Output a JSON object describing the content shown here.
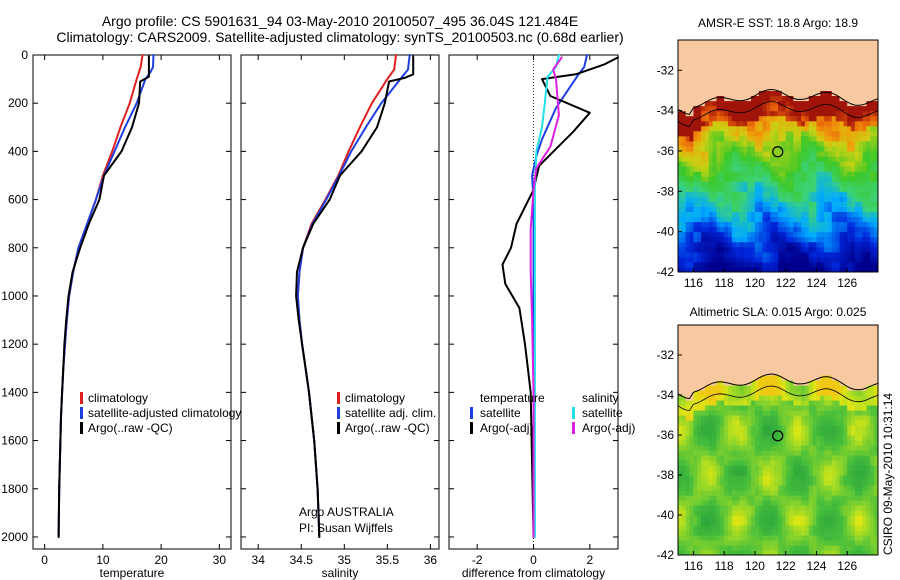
{
  "header": {
    "title_line1": "Argo profile: CS 5901631_94 03-May-2010 20100507_495 36.04S 121.484E",
    "title_line2": "Climatology: CARS2009. Satellite-adjusted climatology: synTS_20100503.nc (0.68d earlier)"
  },
  "side_text": "CSIRO 09-May-2010 10:31:14",
  "colors": {
    "climatology": "#e02020",
    "satellite": "#1f3fe0",
    "argo": "#000000",
    "sat_salinity": "#22e0e8",
    "argo_adj_salinity": "#e020e0",
    "land": "#f8c8a0"
  },
  "chart_data": [
    {
      "type": "line",
      "id": "temperature",
      "xlabel": "temperature",
      "xlim": [
        -2,
        32
      ],
      "ylim": [
        2050,
        0
      ],
      "xticks": [
        0,
        10,
        20,
        30
      ],
      "yticks": [
        0,
        200,
        400,
        600,
        800,
        1000,
        1200,
        1400,
        1600,
        1800,
        2000
      ],
      "legend": [
        "climatology",
        "satellite-adjusted climatology",
        "Argo(..raw -QC)"
      ],
      "series": [
        {
          "name": "climatology",
          "color": "#e02020",
          "width": 2,
          "points": [
            [
              16.8,
              0
            ],
            [
              16.5,
              50
            ],
            [
              15.8,
              100
            ],
            [
              14.6,
              200
            ],
            [
              13.0,
              300
            ],
            [
              11.6,
              400
            ],
            [
              10.0,
              500
            ],
            [
              8.8,
              600
            ],
            [
              7.3,
              700
            ],
            [
              5.8,
              800
            ],
            [
              4.9,
              900
            ],
            [
              4.2,
              1000
            ],
            [
              3.8,
              1100
            ],
            [
              3.5,
              1200
            ],
            [
              3.2,
              1300
            ],
            [
              3.0,
              1400
            ],
            [
              2.8,
              1500
            ],
            [
              2.7,
              1600
            ],
            [
              2.6,
              1700
            ],
            [
              2.5,
              1800
            ],
            [
              2.45,
              1900
            ],
            [
              2.4,
              2000
            ]
          ]
        },
        {
          "name": "satellite-adjusted climatology",
          "color": "#1f3fe0",
          "width": 2,
          "points": [
            [
              18.7,
              0
            ],
            [
              18.6,
              50
            ],
            [
              18.2,
              70
            ],
            [
              17.3,
              100
            ],
            [
              15.8,
              200
            ],
            [
              13.8,
              300
            ],
            [
              12.0,
              400
            ],
            [
              10.2,
              500
            ],
            [
              8.8,
              600
            ],
            [
              7.3,
              700
            ],
            [
              5.8,
              800
            ],
            [
              4.9,
              900
            ],
            [
              4.2,
              1000
            ],
            [
              3.8,
              1100
            ],
            [
              3.5,
              1200
            ],
            [
              3.2,
              1300
            ],
            [
              3.0,
              1400
            ],
            [
              2.8,
              1500
            ],
            [
              2.7,
              1600
            ],
            [
              2.6,
              1700
            ],
            [
              2.5,
              1800
            ],
            [
              2.45,
              1900
            ],
            [
              2.4,
              2000
            ]
          ]
        },
        {
          "name": "Argo(..raw -QC)",
          "color": "#000000",
          "width": 2,
          "points": [
            [
              17.9,
              5
            ],
            [
              17.9,
              60
            ],
            [
              17.9,
              90
            ],
            [
              16.4,
              110
            ],
            [
              16.2,
              200
            ],
            [
              15.0,
              300
            ],
            [
              13.2,
              400
            ],
            [
              10.2,
              500
            ],
            [
              9.4,
              600
            ],
            [
              7.6,
              700
            ],
            [
              6.1,
              800
            ],
            [
              4.8,
              900
            ],
            [
              4.1,
              1000
            ],
            [
              3.7,
              1100
            ],
            [
              3.4,
              1200
            ],
            [
              3.2,
              1300
            ],
            [
              3.0,
              1400
            ],
            [
              2.8,
              1500
            ],
            [
              2.7,
              1600
            ],
            [
              2.6,
              1700
            ],
            [
              2.5,
              1800
            ],
            [
              2.45,
              1900
            ],
            [
              2.4,
              2000
            ]
          ]
        }
      ]
    },
    {
      "type": "line",
      "id": "salinity",
      "xlabel": "salinity",
      "xlim": [
        33.8,
        36.1
      ],
      "ylim": [
        2050,
        0
      ],
      "xticks": [
        34,
        34.5,
        35,
        35.5,
        36
      ],
      "legend": [
        "climatology",
        "satellite adj. clim.",
        "Argo(..raw -QC)"
      ],
      "annotation": [
        "Argo AUSTRALIA",
        "PI: Susan Wijffels"
      ],
      "series": [
        {
          "name": "climatology",
          "color": "#e02020",
          "width": 2,
          "points": [
            [
              35.6,
              0
            ],
            [
              35.58,
              60
            ],
            [
              35.5,
              100
            ],
            [
              35.32,
              200
            ],
            [
              35.18,
              300
            ],
            [
              35.05,
              400
            ],
            [
              34.93,
              500
            ],
            [
              34.78,
              600
            ],
            [
              34.62,
              700
            ],
            [
              34.52,
              800
            ],
            [
              34.48,
              900
            ],
            [
              34.46,
              1000
            ],
            [
              34.48,
              1100
            ],
            [
              34.51,
              1200
            ],
            [
              34.55,
              1300
            ],
            [
              34.59,
              1400
            ],
            [
              34.62,
              1500
            ],
            [
              34.65,
              1600
            ],
            [
              34.67,
              1700
            ],
            [
              34.69,
              1800
            ],
            [
              34.7,
              1900
            ],
            [
              34.71,
              2000
            ]
          ]
        },
        {
          "name": "satellite adj. clim.",
          "color": "#1f3fe0",
          "width": 2,
          "points": [
            [
              35.76,
              0
            ],
            [
              35.74,
              60
            ],
            [
              35.65,
              100
            ],
            [
              35.43,
              200
            ],
            [
              35.25,
              300
            ],
            [
              35.08,
              400
            ],
            [
              34.94,
              500
            ],
            [
              34.79,
              600
            ],
            [
              34.63,
              700
            ],
            [
              34.52,
              800
            ],
            [
              34.48,
              900
            ],
            [
              34.46,
              1000
            ],
            [
              34.48,
              1100
            ],
            [
              34.51,
              1200
            ],
            [
              34.55,
              1300
            ],
            [
              34.59,
              1400
            ],
            [
              34.62,
              1500
            ],
            [
              34.65,
              1600
            ],
            [
              34.67,
              1700
            ],
            [
              34.69,
              1800
            ],
            [
              34.7,
              1900
            ],
            [
              34.71,
              2000
            ]
          ]
        },
        {
          "name": "Argo(..raw -QC)",
          "color": "#000000",
          "width": 2,
          "points": [
            [
              35.8,
              5
            ],
            [
              35.8,
              80
            ],
            [
              35.7,
              95
            ],
            [
              35.52,
              110
            ],
            [
              35.47,
              200
            ],
            [
              35.38,
              300
            ],
            [
              35.2,
              400
            ],
            [
              34.95,
              500
            ],
            [
              34.83,
              600
            ],
            [
              34.64,
              700
            ],
            [
              34.52,
              800
            ],
            [
              34.45,
              900
            ],
            [
              34.44,
              1000
            ],
            [
              34.47,
              1100
            ],
            [
              34.51,
              1200
            ],
            [
              34.55,
              1300
            ],
            [
              34.59,
              1400
            ],
            [
              34.62,
              1500
            ],
            [
              34.65,
              1600
            ],
            [
              34.67,
              1700
            ],
            [
              34.69,
              1800
            ],
            [
              34.7,
              1900
            ],
            [
              34.71,
              2000
            ]
          ]
        }
      ]
    },
    {
      "type": "line",
      "id": "difference",
      "xlabel": "difference from climatology",
      "xlim": [
        -3,
        3
      ],
      "ylim": [
        2050,
        0
      ],
      "xticks": [
        -2,
        0,
        2
      ],
      "legend_left_title": "temperature",
      "legend_right_title": "salinity",
      "legend_left": [
        "satellite",
        "Argo(-adj)"
      ],
      "legend_right": [
        "satellite",
        "Argo(-adj)"
      ],
      "series": [
        {
          "name": "temperature satellite",
          "color": "#1f3fe0",
          "width": 2,
          "points": [
            [
              1.9,
              0
            ],
            [
              1.8,
              50
            ],
            [
              1.6,
              80
            ],
            [
              1.2,
              150
            ],
            [
              0.8,
              220
            ],
            [
              0.3,
              350
            ],
            [
              0.1,
              420
            ],
            [
              -0.05,
              500
            ],
            [
              0.0,
              600
            ],
            [
              0.0,
              800
            ],
            [
              0.0,
              1000
            ],
            [
              0.0,
              1400
            ],
            [
              0.0,
              2000
            ]
          ]
        },
        {
          "name": "temperature Argo(-adj)",
          "color": "#000000",
          "width": 2,
          "points": [
            [
              3.0,
              10
            ],
            [
              2.5,
              40
            ],
            [
              1.5,
              80
            ],
            [
              0.3,
              100
            ],
            [
              0.6,
              170
            ],
            [
              2.0,
              240
            ],
            [
              1.4,
              320
            ],
            [
              0.2,
              460
            ],
            [
              0.0,
              560
            ],
            [
              -0.6,
              700
            ],
            [
              -0.8,
              800
            ],
            [
              -1.1,
              870
            ],
            [
              -1.0,
              950
            ],
            [
              -0.5,
              1050
            ],
            [
              -0.3,
              1200
            ],
            [
              -0.1,
              1400
            ],
            [
              -0.05,
              1700
            ],
            [
              0.0,
              2000
            ]
          ]
        },
        {
          "name": "salinity satellite",
          "color": "#22e0e8",
          "width": 2,
          "points": [
            [
              0.9,
              0
            ],
            [
              0.8,
              50
            ],
            [
              0.5,
              90
            ],
            [
              0.4,
              200
            ],
            [
              0.3,
              300
            ],
            [
              0.1,
              400
            ],
            [
              0.05,
              550
            ],
            [
              0.05,
              800
            ],
            [
              0.05,
              1400
            ],
            [
              0.05,
              2000
            ]
          ]
        },
        {
          "name": "salinity Argo(-adj)",
          "color": "#e020e0",
          "width": 2,
          "points": [
            [
              1.0,
              10
            ],
            [
              0.7,
              60
            ],
            [
              0.8,
              100
            ],
            [
              0.9,
              250
            ],
            [
              0.6,
              380
            ],
            [
              0.1,
              470
            ],
            [
              0.0,
              560
            ],
            [
              -0.1,
              720
            ],
            [
              -0.1,
              900
            ],
            [
              -0.05,
              1100
            ],
            [
              0.0,
              1400
            ],
            [
              0.0,
              2000
            ]
          ]
        }
      ]
    }
  ],
  "maps": [
    {
      "id": "sst",
      "title": "AMSR-E SST: 18.8 Argo: 18.9",
      "xlim": [
        115,
        128
      ],
      "ylim": [
        -42,
        -30.5
      ],
      "xticks": [
        116,
        118,
        120,
        122,
        124,
        126
      ],
      "yticks": [
        -32,
        -34,
        -36,
        -38,
        -40,
        -42
      ],
      "marker": [
        121.484,
        -36.04
      ]
    },
    {
      "id": "sla",
      "title": "Altimetric SLA: 0.015 Argo: 0.025",
      "xlim": [
        115,
        128
      ],
      "ylim": [
        -42,
        -30.5
      ],
      "xticks": [
        116,
        118,
        120,
        122,
        124,
        126
      ],
      "yticks": [
        -32,
        -34,
        -36,
        -38,
        -40,
        -42
      ],
      "marker": [
        121.484,
        -36.04
      ]
    }
  ]
}
